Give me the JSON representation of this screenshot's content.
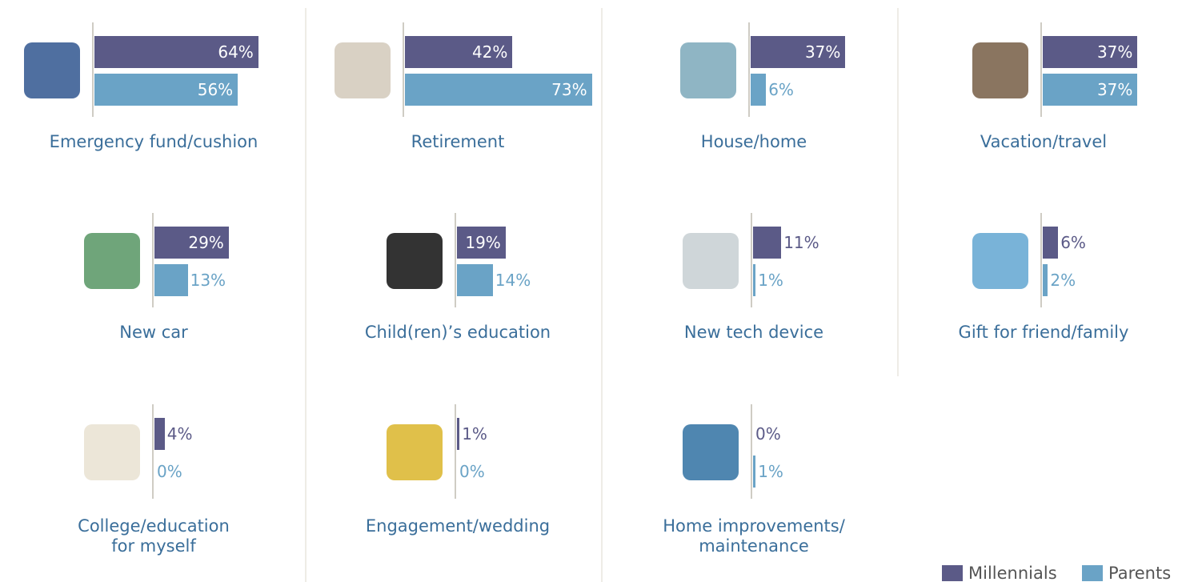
{
  "chart_data": {
    "type": "bar",
    "categories": [
      "Emergency fund/cushion",
      "Retirement",
      "House/home",
      "Vacation/travel",
      "New car",
      "Child(ren)’s education",
      "New tech device",
      "Gift for friend/family",
      "College/education\nfor myself",
      "Engagement/wedding",
      "Home improvements/\nmaintenance"
    ],
    "series": [
      {
        "name": "Millennials",
        "color": "#5b5a87",
        "values": [
          64,
          42,
          37,
          37,
          29,
          19,
          11,
          6,
          4,
          1,
          0
        ],
        "value_labels": [
          "64%",
          "42%",
          "37%",
          "37%",
          "29%",
          "19%",
          "11%",
          "6%",
          "4%",
          "1%",
          "0%"
        ]
      },
      {
        "name": "Parents",
        "color": "#6aa3c6",
        "values": [
          56,
          73,
          6,
          37,
          13,
          14,
          1,
          2,
          0,
          0,
          1
        ],
        "value_labels": [
          "56%",
          "73%",
          "6%",
          "37%",
          "13%",
          "14%",
          "1%",
          "2%",
          "0%",
          "0%",
          "1%"
        ]
      }
    ]
  }
}
